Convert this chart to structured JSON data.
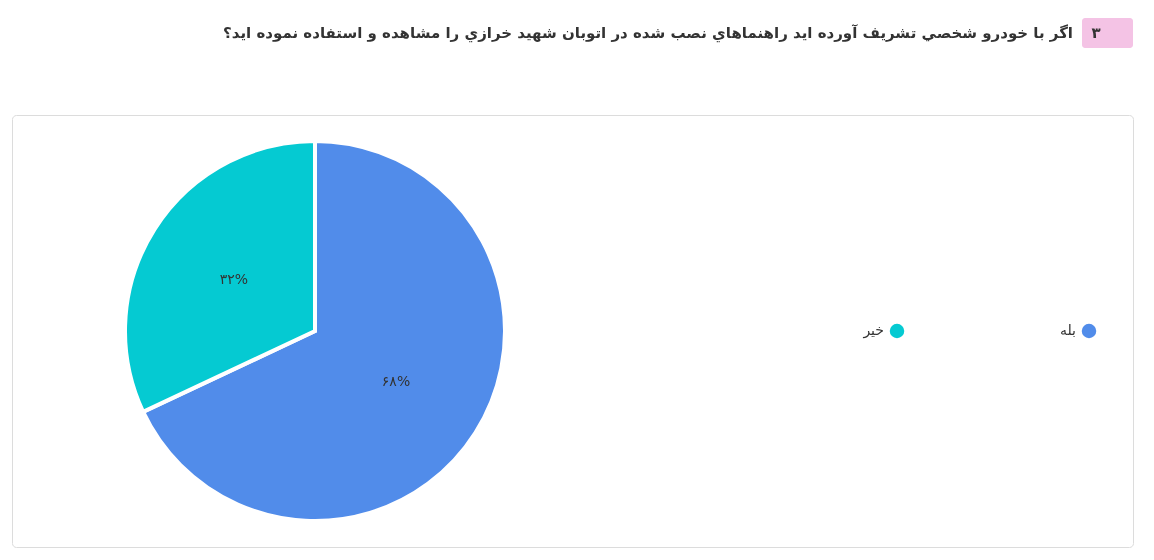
{
  "chart_data": {
    "type": "pie",
    "title": "اگر با خودرو شخصي تشريف آورده ايد راهنماهاي نصب شده در اتوبان شهيد خرازي را مشاهده و استفاده  نموده ايد؟",
    "annotations": [
      "۳"
    ],
    "categories": [
      "بله",
      "خیر"
    ],
    "values": [
      68,
      32
    ],
    "colors": [
      "#518cea",
      "#05cad2"
    ],
    "value_labels": [
      "۶۸%",
      "۳۲%"
    ],
    "legend": "right"
  }
}
